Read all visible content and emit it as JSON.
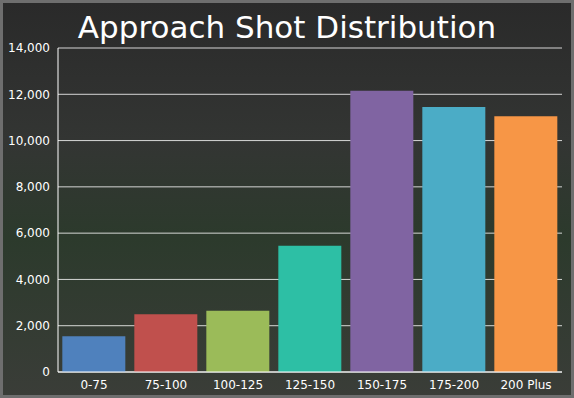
{
  "chart_data": {
    "type": "bar",
    "title": "Approach Shot Distribution",
    "categories": [
      "0-75",
      "75-100",
      "100-125",
      "125-150",
      "150-175",
      "175-200",
      "200 Plus"
    ],
    "values": [
      1550,
      2500,
      2650,
      5450,
      12150,
      11450,
      11050
    ],
    "colors": [
      "#4f81bd",
      "#c0504d",
      "#9bbb59",
      "#2dbfa5",
      "#8064a2",
      "#4bacc6",
      "#f79646"
    ],
    "ylim": [
      0,
      14000
    ],
    "yticks": [
      0,
      {
        "value": 2000,
        "label": "2,000"
      },
      {
        "value": 4000,
        "label": "4,000"
      },
      {
        "value": 6000,
        "label": "6,000"
      },
      {
        "value": 8000,
        "label": "8,000"
      },
      {
        "value": 10000,
        "label": "10,000"
      },
      {
        "value": 12000,
        "label": "12,000"
      },
      {
        "value": 14000,
        "label": "14,000"
      }
    ],
    "grid": true
  }
}
